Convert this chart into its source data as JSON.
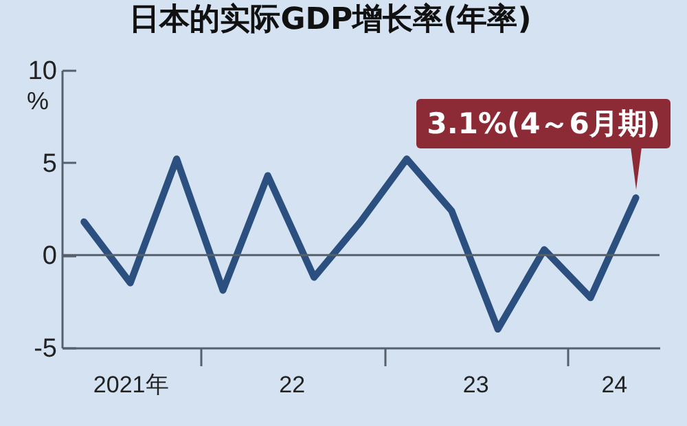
{
  "chart_data": {
    "type": "line",
    "title": "日本的实际GDP增长率(年率)",
    "ylabel": "%",
    "x": [
      "2021-05-15",
      "2021-08-15",
      "2021-11-15",
      "2022-02-15",
      "2022-05-15",
      "2022-08-15",
      "2022-11-15",
      "2023-02-15",
      "2023-05-15",
      "2023-08-15",
      "2023-11-15",
      "2024-02-15",
      "2024-05-15"
    ],
    "series": [
      {
        "color": "#2b4f7e",
        "values": [
          1.8,
          -1.5,
          5.2,
          -1.9,
          4.3,
          -1.2,
          1.8,
          5.2,
          2.4,
          -4.0,
          0.3,
          -2.3,
          3.1
        ]
      }
    ],
    "xlim": [
      "2021-04-01",
      "2024-07-01"
    ],
    "xticks": [
      {
        "value": "2021-08-15",
        "label": "2021年"
      },
      {
        "value": "2022-01-01",
        "label": null
      },
      {
        "value": "2022-07-01",
        "label": "22"
      },
      {
        "value": "2023-01-01",
        "label": null
      },
      {
        "value": "2023-07-01",
        "label": "23"
      },
      {
        "value": "2024-01-01",
        "label": null
      },
      {
        "value": "2024-04-01",
        "label": "24"
      }
    ],
    "ylim": [
      -5,
      10
    ],
    "yticks": [
      -5,
      0,
      5,
      10
    ],
    "ref_lines": [
      {
        "axis": "y",
        "value": 0,
        "color": "#56606c"
      }
    ],
    "annotations": [
      {
        "text": "3.1%(4～6月期)",
        "x": "2024-05-15",
        "y": 3.1
      }
    ],
    "line_style": "solid"
  }
}
